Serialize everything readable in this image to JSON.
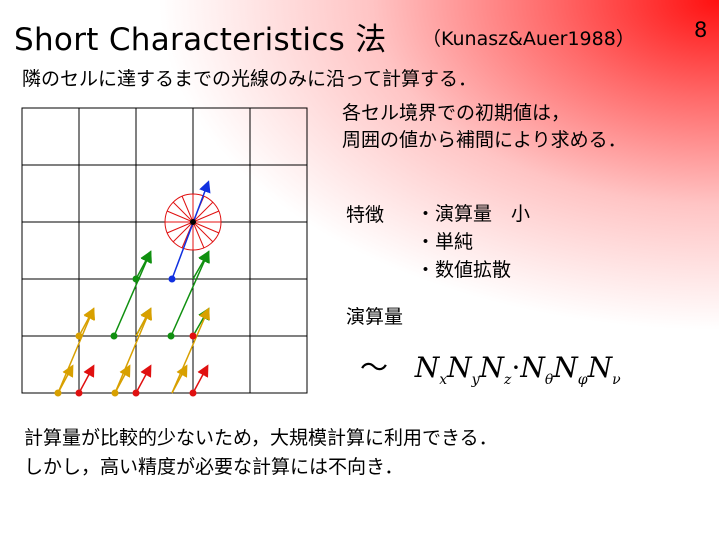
{
  "slide": {
    "title": "Short Characteristics 法",
    "citation": "（Kunasz&Auer1988）",
    "page_number": "8",
    "lead_text": "隣のセルに達するまでの光線のみに沿って計算する．",
    "note_lines": [
      "各セル境界での初期値は，",
      "周囲の値から補間により求める．"
    ],
    "features_label": "特徴",
    "features": [
      "・演算量　小",
      "・単純",
      "・数値拡散"
    ],
    "ops_label": "演算量",
    "formula": {
      "tilde": "～",
      "terms": [
        {
          "base": "N",
          "sub": "x"
        },
        {
          "base": "N",
          "sub": "y"
        },
        {
          "base": "N",
          "sub": "z"
        },
        {
          "dot": "·"
        },
        {
          "base": "N",
          "sub": "θ"
        },
        {
          "base": "N",
          "sub": "φ"
        },
        {
          "base": "N",
          "sub": "ν"
        }
      ]
    },
    "conclusion_lines": [
      "計算量が比較的少ないため，大規模計算に利用できる．",
      "しかし，高い精度が必要な計算には不向き．"
    ],
    "colors": {
      "red": "#e01010",
      "green": "#109010",
      "gold": "#d8a000",
      "blue": "#1030e0",
      "grid": "#000000"
    }
  }
}
